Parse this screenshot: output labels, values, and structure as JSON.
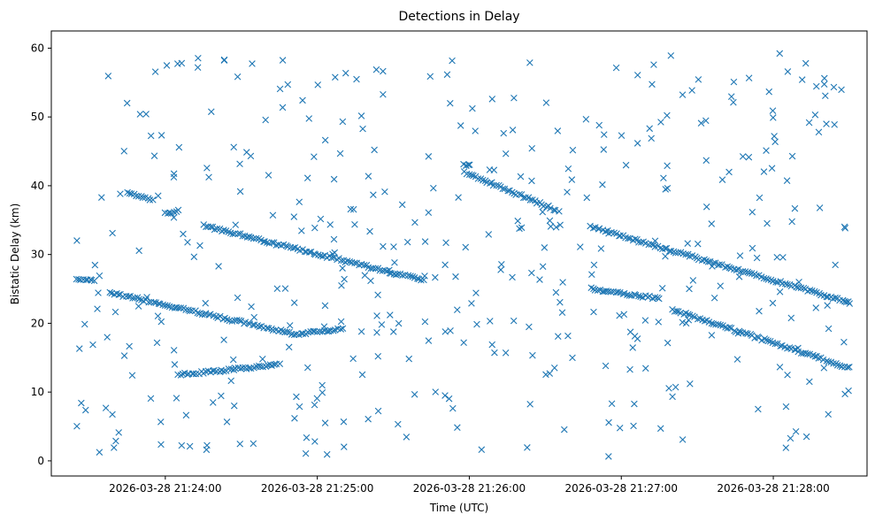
{
  "chart_data": {
    "type": "scatter",
    "title": "Detections in Delay",
    "xlabel": "Time (UTC)",
    "ylabel": "Bistatic Delay (km)",
    "x_unit": "time",
    "xlim": [
      "2026-03-28 21:23:15",
      "2026-03-28 21:28:37"
    ],
    "ylim": [
      -2.2,
      62.5
    ],
    "x_ticks": [
      "2026-03-28 21:24:00",
      "2026-03-28 21:25:00",
      "2026-03-28 21:26:00",
      "2026-03-28 21:27:00",
      "2026-03-28 21:28:00"
    ],
    "y_ticks": [
      0,
      10,
      20,
      30,
      40,
      50,
      60
    ],
    "marker": "x",
    "color": "#1f77b4",
    "grid": false,
    "legend": "none",
    "x_start": "2026-03-28 21:23:25",
    "x_end": "2026-03-28 21:28:30",
    "tracks": [
      {
        "from": [
          "2026-03-28 21:23:38",
          24.5
        ],
        "to": [
          "2026-03-28 21:24:50",
          18.5
        ]
      },
      {
        "from": [
          "2026-03-28 21:24:50",
          18.4
        ],
        "to": [
          "2026-03-28 21:25:10",
          19.2
        ]
      },
      {
        "from": [
          "2026-03-28 21:24:05",
          12.5
        ],
        "to": [
          "2026-03-28 21:24:45",
          14.0
        ]
      },
      {
        "from": [
          "2026-03-28 21:24:00",
          36.0
        ],
        "to": [
          "2026-03-28 21:24:05",
          36.3
        ]
      },
      {
        "from": [
          "2026-03-28 21:24:15",
          34.2
        ],
        "to": [
          "2026-03-28 21:25:42",
          26.2
        ]
      },
      {
        "from": [
          "2026-03-28 21:25:58",
          43.0
        ],
        "to": [
          "2026-03-28 21:26:00",
          43.0
        ]
      },
      {
        "from": [
          "2026-03-28 21:25:58",
          42.0
        ],
        "to": [
          "2026-03-28 21:26:34",
          36.5
        ]
      },
      {
        "from": [
          "2026-03-28 21:26:48",
          34.0
        ],
        "to": [
          "2026-03-28 21:28:30",
          23.0
        ]
      },
      {
        "from": [
          "2026-03-28 21:26:48",
          25.0
        ],
        "to": [
          "2026-03-28 21:27:15",
          23.6
        ]
      },
      {
        "from": [
          "2026-03-28 21:27:20",
          22.0
        ],
        "to": [
          "2026-03-28 21:28:30",
          13.5
        ]
      },
      {
        "from": [
          "2026-03-28 21:23:45",
          39.0
        ],
        "to": [
          "2026-03-28 21:23:55",
          38.0
        ]
      },
      {
        "from": [
          "2026-03-28 21:23:25",
          26.3
        ],
        "to": [
          "2026-03-28 21:23:32",
          26.3
        ]
      }
    ]
  }
}
